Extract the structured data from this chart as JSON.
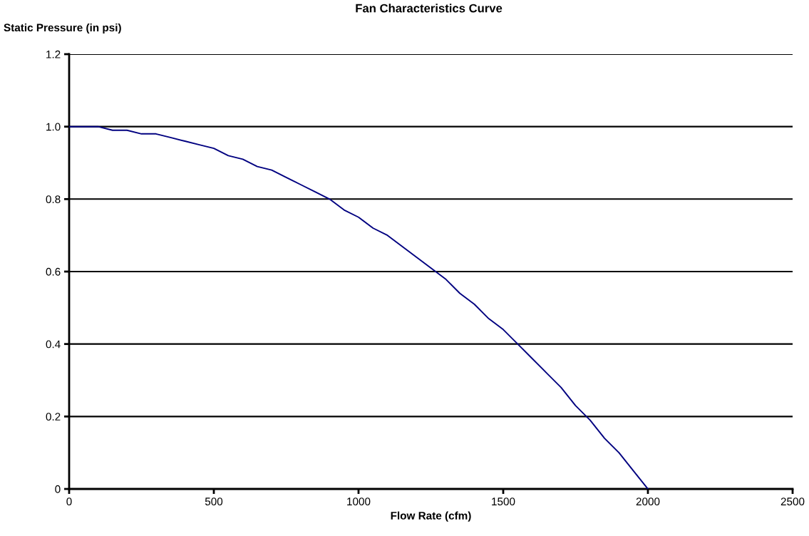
{
  "chart_data": {
    "type": "line",
    "title": "Fan Characteristics Curve",
    "xlabel": "Flow Rate (cfm)",
    "ylabel": "Static Pressure (in psi)",
    "x": [
      0,
      50,
      100,
      150,
      200,
      250,
      300,
      350,
      400,
      450,
      500,
      550,
      600,
      650,
      700,
      750,
      800,
      850,
      900,
      950,
      1000,
      1050,
      1100,
      1150,
      1200,
      1250,
      1300,
      1350,
      1400,
      1450,
      1500,
      1550,
      1600,
      1650,
      1700,
      1750,
      1800,
      1850,
      1900,
      1950,
      2000
    ],
    "series": [
      {
        "color": "#000080",
        "values": [
          1.0,
          1.0,
          1.0,
          0.99,
          0.99,
          0.98,
          0.98,
          0.97,
          0.96,
          0.95,
          0.94,
          0.92,
          0.91,
          0.89,
          0.88,
          0.86,
          0.84,
          0.82,
          0.8,
          0.77,
          0.75,
          0.72,
          0.7,
          0.67,
          0.64,
          0.61,
          0.58,
          0.54,
          0.51,
          0.47,
          0.44,
          0.4,
          0.36,
          0.32,
          0.28,
          0.23,
          0.19,
          0.14,
          0.1,
          0.05,
          0.0
        ]
      }
    ],
    "xlim": [
      0,
      2500
    ],
    "xticks": [
      0,
      500,
      1000,
      1500,
      2000,
      2500
    ],
    "ylim": [
      0,
      1.2
    ],
    "yticks": [
      {
        "value": 0,
        "label": "0"
      },
      {
        "value": 0.2,
        "label": "0.2"
      },
      {
        "value": 0.4,
        "label": "0.4"
      },
      {
        "value": 0.6,
        "label": "0.6"
      },
      {
        "value": 0.8,
        "label": "0.8"
      },
      {
        "value": 1.0,
        "label": "1.0"
      },
      {
        "value": 1.2,
        "label": "1.2"
      }
    ],
    "grid": "y",
    "line_style": "solid"
  }
}
